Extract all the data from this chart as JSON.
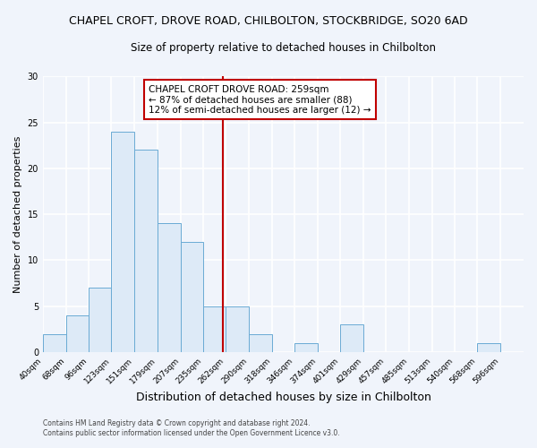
{
  "title": "CHAPEL CROFT, DROVE ROAD, CHILBOLTON, STOCKBRIDGE, SO20 6AD",
  "subtitle": "Size of property relative to detached houses in Chilbolton",
  "xlabel": "Distribution of detached houses by size in Chilbolton",
  "ylabel": "Number of detached properties",
  "bin_labels": [
    "40sqm",
    "68sqm",
    "96sqm",
    "123sqm",
    "151sqm",
    "179sqm",
    "207sqm",
    "235sqm",
    "262sqm",
    "290sqm",
    "318sqm",
    "346sqm",
    "374sqm",
    "401sqm",
    "429sqm",
    "457sqm",
    "485sqm",
    "513sqm",
    "540sqm",
    "568sqm",
    "596sqm"
  ],
  "bin_edges": [
    40,
    68,
    96,
    123,
    151,
    179,
    207,
    235,
    262,
    290,
    318,
    346,
    374,
    401,
    429,
    457,
    485,
    513,
    540,
    568,
    596,
    624
  ],
  "counts": [
    2,
    4,
    7,
    24,
    22,
    14,
    12,
    5,
    5,
    2,
    0,
    1,
    0,
    3,
    0,
    0,
    0,
    0,
    0,
    1,
    0
  ],
  "bar_color": "#ddeaf7",
  "bar_edge_color": "#6aaad4",
  "property_value": 259,
  "vline_color": "#c00000",
  "annotation_line1": "CHAPEL CROFT DROVE ROAD: 259sqm",
  "annotation_line2": "← 87% of detached houses are smaller (88)",
  "annotation_line3": "12% of semi-detached houses are larger (12) →",
  "annotation_box_edge_color": "#c00000",
  "ylim": [
    0,
    30
  ],
  "yticks": [
    0,
    5,
    10,
    15,
    20,
    25,
    30
  ],
  "footer_line1": "Contains HM Land Registry data © Crown copyright and database right 2024.",
  "footer_line2": "Contains public sector information licensed under the Open Government Licence v3.0.",
  "background_color": "#f0f4fb",
  "plot_bg_color": "#f0f4fb",
  "grid_color": "#ffffff",
  "title_fontsize": 9,
  "subtitle_fontsize": 8.5
}
